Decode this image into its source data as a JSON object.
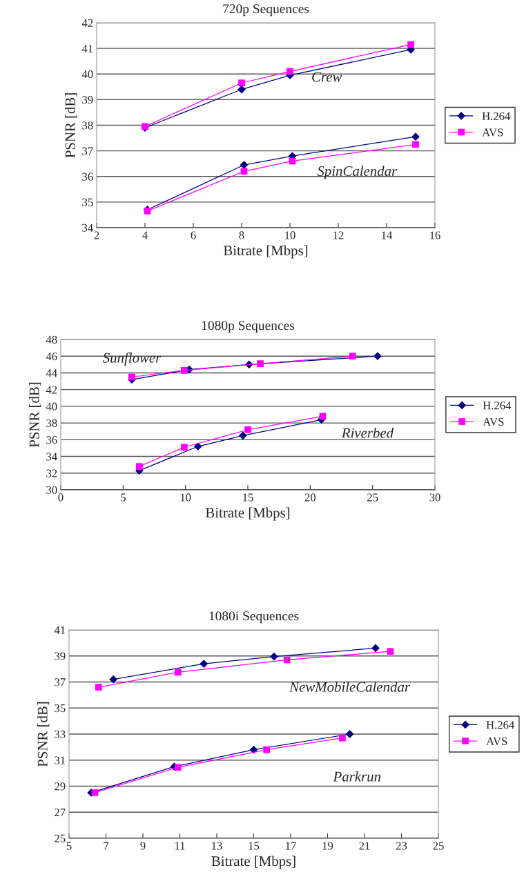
{
  "chart_data": [
    {
      "type": "line",
      "title": "720p Sequences",
      "xlabel": "Bitrate [Mbps]",
      "ylabel": "PSNR [dB]",
      "xlim": [
        2,
        16
      ],
      "xticks": [
        2,
        4,
        6,
        8,
        10,
        12,
        14,
        16
      ],
      "ylim": [
        34,
        42
      ],
      "yticks": [
        34,
        35,
        36,
        37,
        38,
        39,
        40,
        41,
        42
      ],
      "grid": "y",
      "legend": "right",
      "series": [
        {
          "name": "H.264",
          "color": "#000080",
          "marker": "diamond",
          "x": [
            4,
            8,
            10,
            15
          ],
          "values": [
            37.9,
            39.4,
            39.95,
            40.95
          ]
        },
        {
          "name": "AVS",
          "color": "#ff00ff",
          "marker": "square",
          "x": [
            4,
            8,
            10,
            15
          ],
          "values": [
            37.95,
            39.65,
            40.1,
            41.15
          ]
        },
        {
          "color": "#000080",
          "marker": "diamond",
          "x": [
            4.1,
            8.1,
            10.1,
            15.2
          ],
          "values": [
            34.7,
            36.45,
            36.8,
            37.55
          ]
        },
        {
          "color": "#ff00ff",
          "marker": "square",
          "x": [
            4.1,
            8.1,
            10.1,
            15.2
          ],
          "values": [
            34.65,
            36.2,
            36.6,
            37.25
          ]
        }
      ],
      "annotations": [
        "Crew",
        "SpinCalendar"
      ]
    },
    {
      "type": "line",
      "title": "1080p Sequences",
      "xlabel": "Bitrate [Mbps]",
      "ylabel": "PSNR [dB]",
      "xlim": [
        0,
        30
      ],
      "xticks": [
        0,
        5,
        10,
        15,
        20,
        25,
        30
      ],
      "ylim": [
        30,
        48
      ],
      "yticks": [
        30,
        32,
        34,
        36,
        38,
        40,
        42,
        44,
        46,
        48
      ],
      "grid": "y",
      "legend": "right",
      "series": [
        {
          "name": "H.264",
          "color": "#000080",
          "marker": "diamond",
          "x": [
            5.7,
            10.3,
            15.1,
            25.4
          ],
          "values": [
            43.2,
            44.4,
            45.0,
            46.0
          ]
        },
        {
          "name": "AVS",
          "color": "#ff00ff",
          "marker": "square",
          "x": [
            5.7,
            9.9,
            16.0,
            23.4
          ],
          "values": [
            43.5,
            44.3,
            45.1,
            46.0
          ]
        },
        {
          "color": "#000080",
          "marker": "diamond",
          "x": [
            6.3,
            11,
            14.6,
            20.9
          ],
          "values": [
            32.3,
            35.2,
            36.5,
            38.4
          ]
        },
        {
          "color": "#ff00ff",
          "marker": "square",
          "x": [
            6.3,
            9.9,
            15,
            21
          ],
          "values": [
            32.8,
            35.1,
            37.2,
            38.8
          ]
        }
      ],
      "annotations": [
        "Sunflower",
        "Riverbed"
      ]
    },
    {
      "type": "line",
      "title": "1080i Sequences",
      "xlabel": "Bitrate [Mbps]",
      "ylabel": "PSNR [dB]",
      "xlim": [
        5,
        25
      ],
      "xticks": [
        5,
        7,
        9,
        11,
        13,
        15,
        17,
        19,
        21,
        23,
        25
      ],
      "ylim": [
        25,
        41
      ],
      "yticks": [
        25,
        27,
        29,
        31,
        33,
        35,
        37,
        39,
        41
      ],
      "grid": "y",
      "legend": "right",
      "series": [
        {
          "name": "H.264",
          "color": "#000080",
          "marker": "diamond",
          "x": [
            7.4,
            12.3,
            16.1,
            21.6
          ],
          "values": [
            37.2,
            38.4,
            38.95,
            39.6
          ]
        },
        {
          "name": "AVS",
          "color": "#ff00ff",
          "marker": "square",
          "x": [
            6.6,
            10.9,
            16.8,
            22.4
          ],
          "values": [
            36.6,
            37.75,
            38.7,
            39.35
          ]
        },
        {
          "color": "#000080",
          "marker": "diamond",
          "x": [
            6.2,
            10.7,
            15,
            20.2
          ],
          "values": [
            28.5,
            30.5,
            31.8,
            33.0
          ]
        },
        {
          "color": "#ff00ff",
          "marker": "square",
          "x": [
            6.4,
            10.9,
            15.7,
            19.8
          ],
          "values": [
            28.5,
            30.45,
            31.8,
            32.7
          ]
        }
      ],
      "annotations": [
        "NewMobileCalendar",
        "Parkrun"
      ]
    }
  ]
}
